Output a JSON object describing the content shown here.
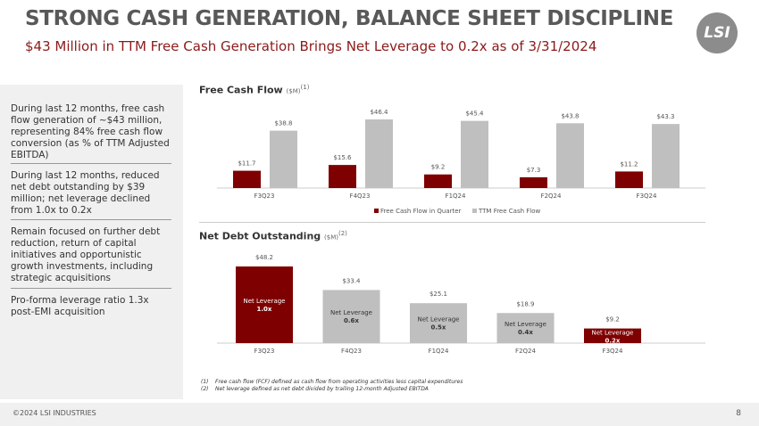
{
  "header": {
    "title": "STRONG CASH GENERATION, BALANCE SHEET DISCIPLINE",
    "subtitle": "$43 Million in TTM Free Cash Generation Brings Net Leverage to 0.2x as of 3/31/2024",
    "logo_text": "LSI"
  },
  "left_panel": {
    "bullets": [
      "During last 12 months, free cash flow generation of ~$43 million, representing 84% free cash flow conversion (as % of TTM Adjusted EBITDA)",
      "During last 12 months, reduced net debt outstanding by $39 million; net leverage declined from 1.0x to 0.2x",
      "Remain focused on further debt reduction, return of capital initiatives and opportunistic growth investments, including strategic acquisitions",
      "Pro-forma leverage ratio 1.3x post-EMI acquisition"
    ]
  },
  "colors": {
    "red": "#7f0000",
    "gray": "#bfbfbf"
  },
  "chart_data": [
    {
      "type": "bar",
      "title": "Free Cash Flow",
      "unit": "($M)",
      "footnote_ref": "(1)",
      "categories": [
        "F3Q23",
        "F4Q23",
        "F1Q24",
        "F2Q24",
        "F3Q24"
      ],
      "series": [
        {
          "name": "Free Cash Flow in Quarter",
          "values": [
            11.7,
            15.6,
            9.2,
            7.3,
            11.2
          ],
          "labels": [
            "$11.7",
            "$15.6",
            "$9.2",
            "$7.3",
            "$11.2"
          ]
        },
        {
          "name": "TTM Free Cash Flow",
          "values": [
            38.8,
            46.4,
            45.4,
            43.8,
            43.3
          ],
          "labels": [
            "$38.8",
            "$46.4",
            "$45.4",
            "$43.8",
            "$43.3"
          ]
        }
      ],
      "legend": "bottom",
      "ylim": [
        0,
        50
      ]
    },
    {
      "type": "bar",
      "title": "Net Debt Outstanding",
      "unit": "($M)",
      "footnote_ref": "(2)",
      "categories": [
        "F3Q23",
        "F4Q23",
        "F1Q24",
        "F2Q24",
        "F3Q24"
      ],
      "values": [
        48.2,
        33.4,
        25.1,
        18.9,
        9.2
      ],
      "labels": [
        "$48.2",
        "$33.4",
        "$25.1",
        "$18.9",
        "$9.2"
      ],
      "inner_label": "Net Leverage",
      "leverage": [
        "1.0x",
        "0.6x",
        "0.5x",
        "0.4x",
        "0.2x"
      ],
      "highlight": [
        true,
        false,
        false,
        false,
        true
      ],
      "ylim": [
        0,
        50
      ]
    }
  ],
  "footnotes": [
    {
      "num": "(1)",
      "text": "Free cash flow (FCF) defined as cash flow from operating activities less capital expenditures"
    },
    {
      "num": "(2)",
      "text": "Net leverage defined as net debt divided by trailing 12-month Adjusted EBITDA"
    }
  ],
  "footer": {
    "copyright": "©2024 LSI INDUSTRIES",
    "page": "8"
  }
}
